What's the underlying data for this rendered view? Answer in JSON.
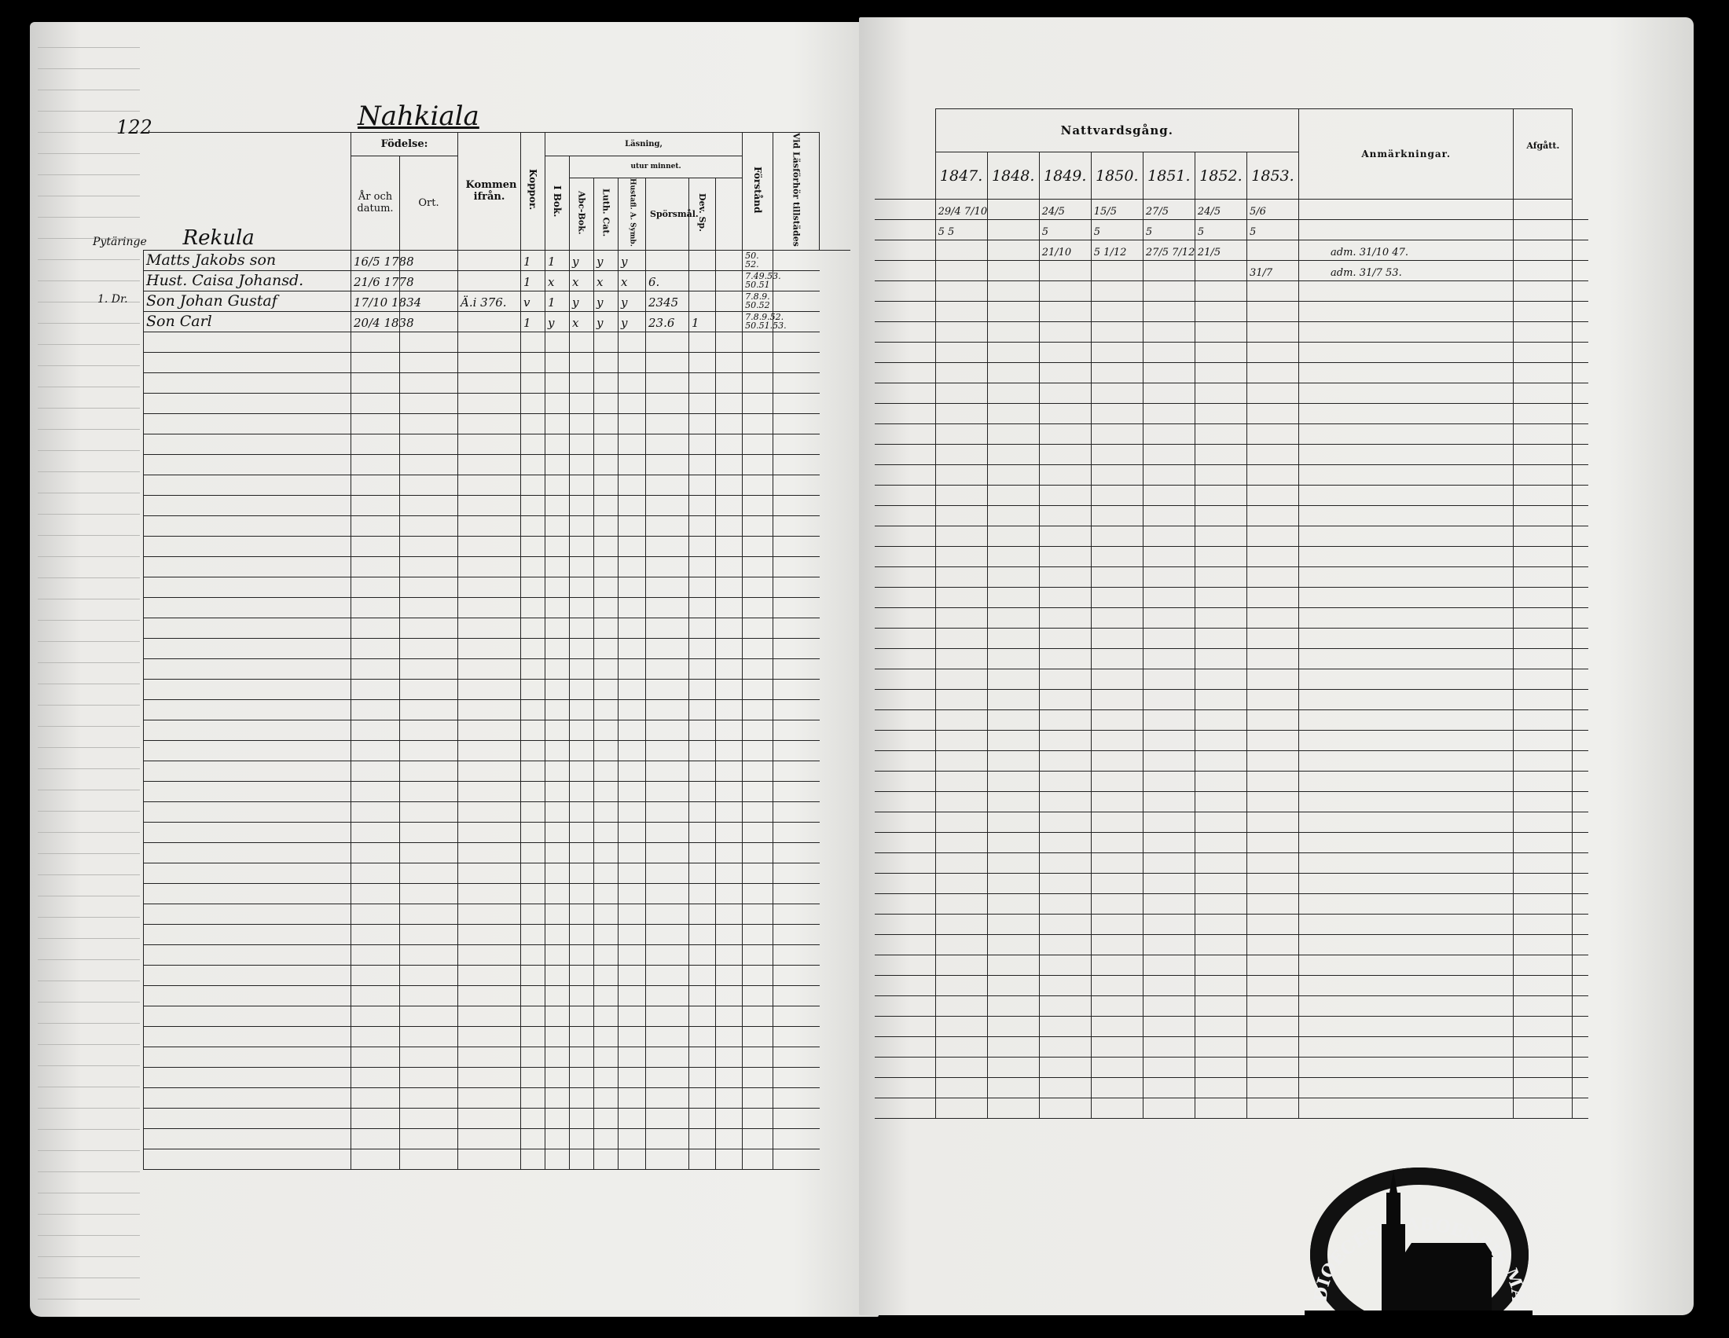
{
  "left_page": {
    "page_number": "122",
    "title": "Nahkiala",
    "village": "Rekula",
    "headers": {
      "fodelse": "Födelse:",
      "ar_och_datum": "År och datum.",
      "ort": "Ort.",
      "kommen_ifran": "Kommen ifrån.",
      "koppor": "Koppor.",
      "lasning": "Läsning,",
      "utur_minnet": "utur minnet.",
      "i_bok": "I Bok.",
      "abc_bok": "Abc-Bok.",
      "luth_cat": "Luth. Cat.",
      "hufvudstyck_symb": "Hustafl. A. Symb.",
      "sporsmal": "Spörsmål.",
      "dev_sp": "Dev. Sp.",
      "forstand": "Förstånd",
      "vid_lasforhor": "Vid Läsförhör tillstädes"
    },
    "margin_notes": [
      "Pytäringe",
      "1. Dr."
    ],
    "rows": [
      {
        "name": "Matts Jakobs son",
        "birth": "16/5 1788",
        "kommen": "",
        "koppor": "1",
        "i_bok": "1",
        "abc": "y",
        "luth": "y",
        "symb": "y",
        "sporsmal": "",
        "dev": "",
        "forstand": "",
        "lasforhor": "50. 52."
      },
      {
        "name": "Hust. Caisa Johansd.",
        "birth": "21/6 1778",
        "kommen": "",
        "koppor": "1",
        "i_bok": "x",
        "abc": "x",
        "luth": "x",
        "symb": "x",
        "sporsmal": "6.",
        "dev": "",
        "forstand": "",
        "lasforhor": "7.49.53. 50.51"
      },
      {
        "name": "Son Johan Gustaf",
        "birth": "17/10 1834",
        "kommen": "Ä.i 376.",
        "koppor": "v",
        "i_bok": "1",
        "abc": "y",
        "luth": "y",
        "symb": "y",
        "sporsmal": "2345",
        "dev": "",
        "forstand": "",
        "lasforhor": "7.8.9. 50.52"
      },
      {
        "name": "Son Carl",
        "birth": "20/4 1838",
        "kommen": "",
        "koppor": "1",
        "i_bok": "y",
        "abc": "x",
        "luth": "y",
        "symb": "y",
        "sporsmal": "23.6",
        "dev": "1",
        "forstand": "",
        "lasforhor": "7.8.9.52. 50.51.53."
      }
    ]
  },
  "right_page": {
    "headers": {
      "nattvardsgang": "Nattvardsgång.",
      "years": [
        "1847.",
        "1848.",
        "1849.",
        "1850.",
        "1851.",
        "1852.",
        "1853."
      ],
      "anmarkningar": "Anmärkningar.",
      "afgatt": "Afgått."
    },
    "rows": [
      {
        "years": [
          "29/4 7/10",
          "",
          "24/5",
          "15/5",
          "27/5",
          "24/5",
          "5/6"
        ],
        "anm": ""
      },
      {
        "years": [
          "5 5",
          "",
          "5",
          "5",
          "5",
          "5",
          "5"
        ],
        "anm": ""
      },
      {
        "years": [
          "",
          "",
          "21/10",
          "5 1/12",
          "27/5 7/12",
          "21/5",
          ""
        ],
        "anm": "adm. 31/10 47."
      },
      {
        "years": [
          "",
          "",
          "",
          "",
          "",
          "",
          "31/7"
        ],
        "anm": "adm. 31/7 53."
      }
    ]
  },
  "seal": {
    "text": "DIOECESIS ABOENSIS MAG. INT."
  }
}
